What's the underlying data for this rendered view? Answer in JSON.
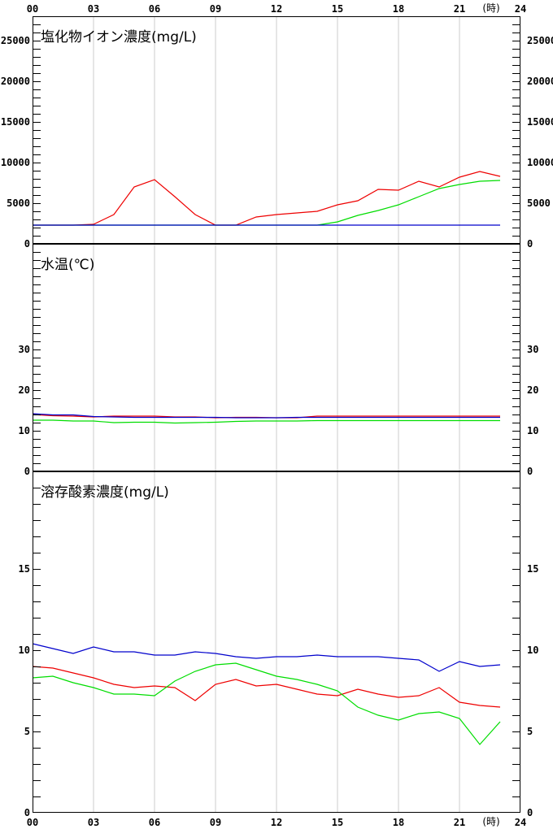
{
  "time_axis": {
    "ticks": [
      "00",
      "03",
      "06",
      "09",
      "12",
      "15",
      "18",
      "21",
      "24"
    ],
    "unit": "(時)"
  },
  "colors": {
    "red": "#ee0000",
    "green": "#00dd00",
    "blue": "#0000cc",
    "grid": "#cccccc",
    "axis": "#000000"
  },
  "chart_data": [
    {
      "type": "line",
      "title": "塩化物イオン濃度(mg/L)",
      "ylim": [
        0,
        28000
      ],
      "yticks": [
        0,
        5000,
        10000,
        15000,
        20000,
        25000
      ],
      "x": [
        0,
        1,
        2,
        3,
        4,
        5,
        6,
        7,
        8,
        9,
        10,
        11,
        12,
        13,
        14,
        15,
        16,
        17,
        18,
        19,
        20,
        21,
        22,
        23
      ],
      "series": [
        {
          "color": "red",
          "values": [
            2300,
            2300,
            2300,
            2400,
            3600,
            7000,
            7900,
            5800,
            3600,
            2300,
            2300,
            3300,
            3600,
            3800,
            4000,
            4800,
            5300,
            6700,
            6600,
            7700,
            7000,
            8200,
            8900,
            8300
          ]
        },
        {
          "color": "green",
          "values": [
            2300,
            2300,
            2300,
            2300,
            2300,
            2300,
            2300,
            2300,
            2300,
            2300,
            2300,
            2300,
            2300,
            2300,
            2300,
            2700,
            3500,
            4100,
            4800,
            5800,
            6800,
            7300,
            7700,
            7800
          ]
        },
        {
          "color": "blue",
          "values": [
            2300,
            2300,
            2300,
            2300,
            2300,
            2300,
            2300,
            2300,
            2300,
            2300,
            2300,
            2300,
            2300,
            2300,
            2300,
            2300,
            2300,
            2300,
            2300,
            2300,
            2300,
            2300,
            2300,
            2300
          ]
        }
      ]
    },
    {
      "type": "line",
      "title": "水温(℃)",
      "ylim": [
        0,
        56
      ],
      "yticks": [
        0,
        10,
        20,
        30
      ],
      "x": [
        0,
        1,
        2,
        3,
        4,
        5,
        6,
        7,
        8,
        9,
        10,
        11,
        12,
        13,
        14,
        15,
        16,
        17,
        18,
        19,
        20,
        21,
        22,
        23
      ],
      "series": [
        {
          "color": "red",
          "values": [
            14.0,
            13.7,
            13.6,
            13.4,
            13.6,
            13.6,
            13.6,
            13.4,
            13.4,
            13.2,
            13.3,
            13.3,
            13.2,
            13.2,
            13.6,
            13.6,
            13.6,
            13.6,
            13.6,
            13.6,
            13.6,
            13.6,
            13.6,
            13.6
          ]
        },
        {
          "color": "green",
          "values": [
            12.6,
            12.6,
            12.4,
            12.4,
            12.0,
            12.1,
            12.1,
            11.9,
            12.0,
            12.1,
            12.3,
            12.4,
            12.4,
            12.4,
            12.5,
            12.5,
            12.5,
            12.5,
            12.5,
            12.5,
            12.5,
            12.5,
            12.5,
            12.5
          ]
        },
        {
          "color": "blue",
          "values": [
            14.2,
            13.9,
            13.9,
            13.5,
            13.4,
            13.3,
            13.3,
            13.3,
            13.3,
            13.3,
            13.2,
            13.2,
            13.2,
            13.3,
            13.3,
            13.3,
            13.3,
            13.3,
            13.3,
            13.3,
            13.3,
            13.3,
            13.3,
            13.3
          ]
        }
      ]
    },
    {
      "type": "line",
      "title": "溶存酸素濃度(mg/L)",
      "ylim": [
        0,
        21
      ],
      "yticks": [
        0,
        5,
        10,
        15
      ],
      "x": [
        0,
        1,
        2,
        3,
        4,
        5,
        6,
        7,
        8,
        9,
        10,
        11,
        12,
        13,
        14,
        15,
        16,
        17,
        18,
        19,
        20,
        21,
        22,
        23
      ],
      "series": [
        {
          "color": "red",
          "values": [
            9.0,
            8.9,
            8.6,
            8.3,
            7.9,
            7.7,
            7.8,
            7.7,
            6.9,
            7.9,
            8.2,
            7.8,
            7.9,
            7.6,
            7.3,
            7.2,
            7.6,
            7.3,
            7.1,
            7.2,
            7.7,
            6.8,
            6.6,
            6.5
          ]
        },
        {
          "color": "green",
          "values": [
            8.3,
            8.4,
            8.0,
            7.7,
            7.3,
            7.3,
            7.2,
            8.1,
            8.7,
            9.1,
            9.2,
            8.8,
            8.4,
            8.2,
            7.9,
            7.5,
            6.5,
            6.0,
            5.7,
            6.1,
            6.2,
            5.8,
            4.2,
            5.6
          ]
        },
        {
          "color": "blue",
          "values": [
            10.4,
            10.1,
            9.8,
            10.2,
            9.9,
            9.9,
            9.7,
            9.7,
            9.9,
            9.8,
            9.6,
            9.5,
            9.6,
            9.6,
            9.7,
            9.6,
            9.6,
            9.6,
            9.5,
            9.4,
            8.7,
            9.3,
            9.0,
            9.1
          ]
        }
      ]
    }
  ]
}
